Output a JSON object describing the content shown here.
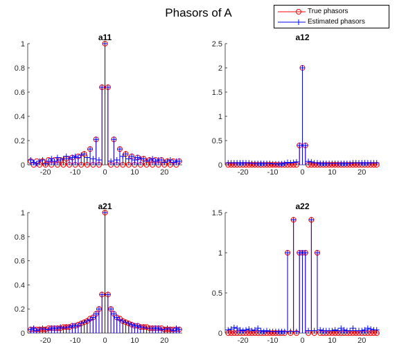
{
  "figure": {
    "title": "Phasors of A",
    "legend": [
      {
        "label": "True phasors",
        "color": "#ff0000",
        "marker": "circle"
      },
      {
        "label": "Estimated phasors",
        "color": "#0000ff",
        "marker": "plus"
      }
    ]
  },
  "chart_data": [
    {
      "type": "stem",
      "title": "a11",
      "xlim": [
        -26,
        26
      ],
      "ylim": [
        0,
        1
      ],
      "xticks": [
        -20,
        -10,
        0,
        10,
        20
      ],
      "yticks": [
        0,
        0.2,
        0.4,
        0.6,
        0.8,
        1
      ],
      "ytick_labels": [
        "0",
        "0.2",
        "0.4",
        "0.6",
        "0.8",
        "1"
      ],
      "x": [
        -25,
        -24,
        -23,
        -22,
        -21,
        -20,
        -19,
        -18,
        -17,
        -16,
        -15,
        -14,
        -13,
        -12,
        -11,
        -10,
        -9,
        -8,
        -7,
        -6,
        -5,
        -4,
        -3,
        -2,
        -1,
        0,
        1,
        2,
        3,
        4,
        5,
        6,
        7,
        8,
        9,
        10,
        11,
        12,
        13,
        14,
        15,
        16,
        17,
        18,
        19,
        20,
        21,
        22,
        23,
        24,
        25
      ],
      "series": [
        {
          "name": "True phasors",
          "values": [
            0.03,
            0,
            0.03,
            0,
            0.03,
            0,
            0.04,
            0,
            0.04,
            0,
            0.04,
            0,
            0.05,
            0,
            0.06,
            0,
            0.07,
            0,
            0.09,
            0,
            0.13,
            0,
            0.21,
            0,
            0.64,
            1,
            0.64,
            0,
            0.21,
            0,
            0.13,
            0,
            0.09,
            0,
            0.07,
            0,
            0.06,
            0,
            0.05,
            0,
            0.04,
            0,
            0.04,
            0,
            0.04,
            0,
            0.03,
            0,
            0.03,
            0,
            0.03
          ]
        },
        {
          "name": "Estimated phasors",
          "values": [
            0.04,
            0.02,
            0.01,
            0.03,
            0.04,
            0.01,
            0.03,
            0.05,
            0.03,
            0.06,
            0.04,
            0.05,
            0.07,
            0.05,
            0.06,
            0.07,
            0.06,
            0.08,
            0.09,
            0.06,
            0.13,
            0.05,
            0.21,
            0.04,
            0.64,
            1,
            0.64,
            0.03,
            0.21,
            0.04,
            0.13,
            0.07,
            0.09,
            0.05,
            0.07,
            0.04,
            0.06,
            0.05,
            0.05,
            0.03,
            0.04,
            0.05,
            0.03,
            0.04,
            0.04,
            0.02,
            0.03,
            0.04,
            0.02,
            0.03,
            0.03
          ]
        }
      ]
    },
    {
      "type": "stem",
      "title": "a12",
      "xlim": [
        -26,
        26
      ],
      "ylim": [
        0,
        2.5
      ],
      "xticks": [
        -20,
        -10,
        0,
        10,
        20
      ],
      "yticks": [
        0,
        0.5,
        1,
        1.5,
        2,
        2.5
      ],
      "ytick_labels": [
        "0",
        "0.5",
        "1",
        "1.5",
        "2",
        "2.5"
      ],
      "x": [
        -25,
        -24,
        -23,
        -22,
        -21,
        -20,
        -19,
        -18,
        -17,
        -16,
        -15,
        -14,
        -13,
        -12,
        -11,
        -10,
        -9,
        -8,
        -7,
        -6,
        -5,
        -4,
        -3,
        -2,
        -1,
        0,
        1,
        2,
        3,
        4,
        5,
        6,
        7,
        8,
        9,
        10,
        11,
        12,
        13,
        14,
        15,
        16,
        17,
        18,
        19,
        20,
        21,
        22,
        23,
        24,
        25
      ],
      "series": [
        {
          "name": "True phasors",
          "values": [
            0,
            0,
            0,
            0,
            0,
            0,
            0,
            0,
            0,
            0,
            0,
            0,
            0,
            0,
            0,
            0,
            0,
            0,
            0,
            0,
            0,
            0,
            0,
            0,
            0.4,
            2,
            0.4,
            0,
            0,
            0,
            0,
            0,
            0,
            0,
            0,
            0,
            0,
            0,
            0,
            0,
            0,
            0,
            0,
            0,
            0,
            0,
            0,
            0,
            0,
            0,
            0
          ]
        },
        {
          "name": "Estimated phasors",
          "values": [
            0.04,
            0.04,
            0.04,
            0.04,
            0.04,
            0.04,
            0.04,
            0.04,
            0.03,
            0.03,
            0.03,
            0.03,
            0.03,
            0.03,
            0.03,
            0.02,
            0.02,
            0.02,
            0.02,
            0.03,
            0.05,
            0.04,
            0.05,
            0.06,
            0.4,
            2,
            0.4,
            0.07,
            0.06,
            0.04,
            0.04,
            0.03,
            0.03,
            0.03,
            0.03,
            0.03,
            0.03,
            0.03,
            0.03,
            0.03,
            0.03,
            0.03,
            0.04,
            0.04,
            0.04,
            0.04,
            0.04,
            0.04,
            0.04,
            0.04,
            0.04
          ]
        }
      ]
    },
    {
      "type": "stem",
      "title": "a21",
      "xlim": [
        -26,
        26
      ],
      "ylim": [
        0,
        1
      ],
      "xticks": [
        -20,
        -10,
        0,
        10,
        20
      ],
      "yticks": [
        0,
        0.2,
        0.4,
        0.6,
        0.8,
        1
      ],
      "ytick_labels": [
        "0",
        "0.2",
        "0.4",
        "0.6",
        "0.8",
        "1"
      ],
      "x": [
        -25,
        -24,
        -23,
        -22,
        -21,
        -20,
        -19,
        -18,
        -17,
        -16,
        -15,
        -14,
        -13,
        -12,
        -11,
        -10,
        -9,
        -8,
        -7,
        -6,
        -5,
        -4,
        -3,
        -2,
        -1,
        0,
        1,
        2,
        3,
        4,
        5,
        6,
        7,
        8,
        9,
        10,
        11,
        12,
        13,
        14,
        15,
        16,
        17,
        18,
        19,
        20,
        21,
        22,
        23,
        24,
        25
      ],
      "series": [
        {
          "name": "True phasors",
          "values": [
            0.03,
            0.03,
            0.03,
            0.03,
            0.03,
            0.03,
            0.04,
            0.04,
            0.04,
            0.04,
            0.04,
            0.05,
            0.05,
            0.05,
            0.06,
            0.06,
            0.07,
            0.08,
            0.09,
            0.1,
            0.12,
            0.13,
            0.16,
            0.2,
            0.32,
            1,
            0.32,
            0.2,
            0.16,
            0.13,
            0.12,
            0.1,
            0.09,
            0.08,
            0.07,
            0.06,
            0.06,
            0.05,
            0.05,
            0.05,
            0.04,
            0.04,
            0.04,
            0.04,
            0.04,
            0.03,
            0.03,
            0.03,
            0.03,
            0.03,
            0.03
          ]
        },
        {
          "name": "Estimated phasors",
          "values": [
            0.03,
            0.04,
            0.02,
            0.03,
            0.04,
            0.03,
            0.03,
            0.04,
            0.04,
            0.04,
            0.05,
            0.04,
            0.05,
            0.05,
            0.06,
            0.06,
            0.06,
            0.08,
            0.09,
            0.1,
            0.11,
            0.13,
            0.16,
            0.2,
            0.32,
            1,
            0.32,
            0.2,
            0.16,
            0.13,
            0.11,
            0.1,
            0.09,
            0.08,
            0.07,
            0.06,
            0.06,
            0.05,
            0.05,
            0.04,
            0.04,
            0.04,
            0.04,
            0.04,
            0.03,
            0.03,
            0.04,
            0.03,
            0.02,
            0.04,
            0.03
          ]
        }
      ]
    },
    {
      "type": "stem",
      "title": "a22",
      "xlim": [
        -26,
        26
      ],
      "ylim": [
        0,
        1.5
      ],
      "xticks": [
        -20,
        -10,
        0,
        10,
        20
      ],
      "yticks": [
        0,
        0.5,
        1,
        1.5
      ],
      "ytick_labels": [
        "0",
        "0.5",
        "1",
        "1.5"
      ],
      "x": [
        -25,
        -24,
        -23,
        -22,
        -21,
        -20,
        -19,
        -18,
        -17,
        -16,
        -15,
        -14,
        -13,
        -12,
        -11,
        -10,
        -9,
        -8,
        -7,
        -6,
        -5,
        -4,
        -3,
        -2,
        -1,
        0,
        1,
        2,
        3,
        4,
        5,
        6,
        7,
        8,
        9,
        10,
        11,
        12,
        13,
        14,
        15,
        16,
        17,
        18,
        19,
        20,
        21,
        22,
        23,
        24,
        25
      ],
      "series": [
        {
          "name": "True phasors",
          "values": [
            0,
            0,
            0,
            0,
            0,
            0,
            0,
            0,
            0,
            0,
            0,
            0,
            0,
            0,
            0,
            0,
            0,
            0,
            0,
            0,
            1,
            0,
            1.41,
            0,
            1,
            1,
            1,
            0,
            1.41,
            0,
            1,
            0,
            0,
            0,
            0,
            0,
            0,
            0,
            0,
            0,
            0,
            0,
            0,
            0,
            0,
            0,
            0,
            0,
            0,
            0,
            0
          ]
        },
        {
          "name": "Estimated phasors",
          "values": [
            0.04,
            0.05,
            0.07,
            0.06,
            0.04,
            0.03,
            0.04,
            0.05,
            0.03,
            0.04,
            0.06,
            0.03,
            0.02,
            0.03,
            0.02,
            0.02,
            0.02,
            0.02,
            0.02,
            0.02,
            1,
            0.02,
            1.41,
            0.02,
            1,
            1,
            1,
            0.03,
            1.41,
            0.03,
            1,
            0.04,
            0.03,
            0.03,
            0.03,
            0.03,
            0.04,
            0.03,
            0.06,
            0.04,
            0.03,
            0.03,
            0.06,
            0.03,
            0.03,
            0.03,
            0.04,
            0.06,
            0.05,
            0.04,
            0.04
          ]
        }
      ]
    }
  ]
}
